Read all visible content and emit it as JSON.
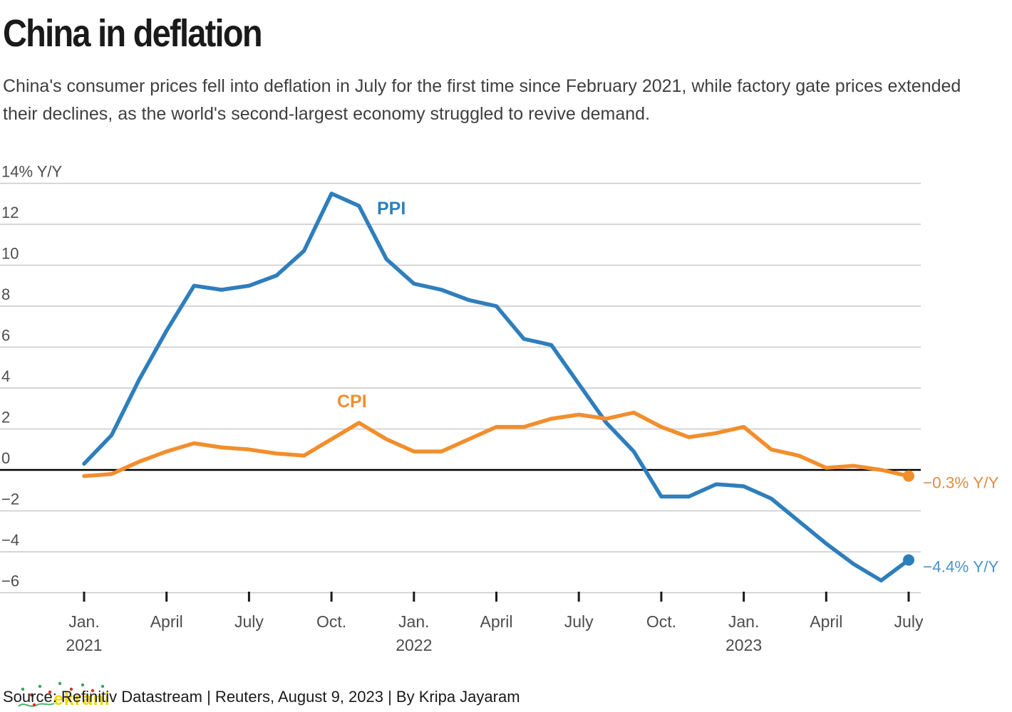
{
  "header": {
    "title": "China in deflation",
    "subtitle": "China's consumer prices fell into deflation in July for the first time since February 2021, while factory gate prices extended their declines, as the world's second-largest economy struggled to revive demand."
  },
  "chart_data": {
    "type": "line",
    "title": "China in deflation",
    "x_unit": "monthly, Jan 2021 - Jul 2023",
    "ylim": [
      -6,
      14
    ],
    "grid": true,
    "grid_color": "#c9c9c9",
    "zero_line_color": "#000000",
    "axis_label_color": "#4d4d4d",
    "tick_mark_color": "#1a1a1a",
    "yticks": [
      {
        "value": 14,
        "label": "14% Y/Y"
      },
      {
        "value": 12,
        "label": "12"
      },
      {
        "value": 10,
        "label": "10"
      },
      {
        "value": 8,
        "label": "8"
      },
      {
        "value": 6,
        "label": "6"
      },
      {
        "value": 4,
        "label": "4"
      },
      {
        "value": 2,
        "label": "2"
      },
      {
        "value": 0,
        "label": "0"
      },
      {
        "value": -2,
        "label": "−2"
      },
      {
        "value": -4,
        "label": "−4"
      },
      {
        "value": -6,
        "label": "−6"
      }
    ],
    "xticks": [
      {
        "month_index": 0,
        "label": "Jan.",
        "year": "2021"
      },
      {
        "month_index": 3,
        "label": "April"
      },
      {
        "month_index": 6,
        "label": "July"
      },
      {
        "month_index": 9,
        "label": "Oct."
      },
      {
        "month_index": 12,
        "label": "Jan.",
        "year": "2022"
      },
      {
        "month_index": 15,
        "label": "April"
      },
      {
        "month_index": 18,
        "label": "July"
      },
      {
        "month_index": 21,
        "label": "Oct."
      },
      {
        "month_index": 24,
        "label": "Jan.",
        "year": "2023"
      },
      {
        "month_index": 27,
        "label": "April"
      },
      {
        "month_index": 30,
        "label": "July"
      }
    ],
    "series": [
      {
        "name": "PPI",
        "color": "#2e7ebc",
        "end_label": "−4.4% Y/Y",
        "end_label_color": "#4d94cc",
        "values": [
          0.3,
          1.7,
          4.4,
          6.8,
          9.0,
          8.8,
          9.0,
          9.5,
          10.7,
          13.5,
          12.9,
          10.3,
          9.1,
          8.8,
          8.3,
          8.0,
          6.4,
          6.1,
          4.2,
          2.3,
          0.9,
          -1.3,
          -1.3,
          -0.7,
          -0.8,
          -1.4,
          -2.5,
          -3.6,
          -4.6,
          -5.4,
          -4.4
        ]
      },
      {
        "name": "CPI",
        "color": "#f28e2c",
        "end_label": "−0.3% Y/Y",
        "end_label_color": "#dd8e43",
        "values": [
          -0.3,
          -0.2,
          0.4,
          0.9,
          1.3,
          1.1,
          1.0,
          0.8,
          0.7,
          1.5,
          2.3,
          1.5,
          0.9,
          0.9,
          1.5,
          2.1,
          2.1,
          2.5,
          2.7,
          2.5,
          2.8,
          2.1,
          1.6,
          1.8,
          2.1,
          1.0,
          0.7,
          0.1,
          0.2,
          0.0,
          -0.3
        ]
      }
    ]
  },
  "footer": {
    "source": "Source: Refinitiv Datastream | Reuters, August 9, 2023 | By Kripa Jayaram",
    "watermark": "ekrani"
  }
}
